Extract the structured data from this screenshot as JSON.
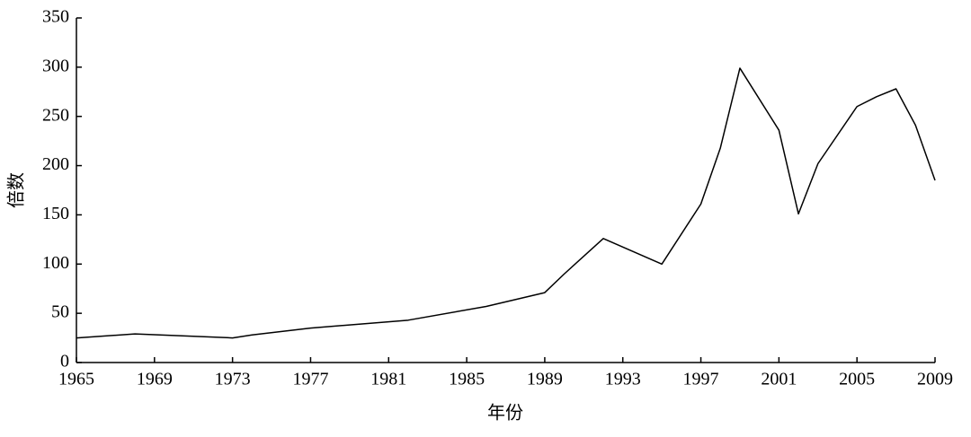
{
  "chart_data": {
    "type": "line",
    "x_label": "年份",
    "y_label": "倍数",
    "x": [
      1965,
      1968,
      1973,
      1974,
      1977,
      1982,
      1986,
      1989,
      1990,
      1992,
      1995,
      1997,
      1998,
      1999,
      2001,
      2002,
      2003,
      2005,
      2006,
      2007,
      2008,
      2009
    ],
    "series": [
      {
        "color": "#000000",
        "values": [
          25,
          29,
          25,
          28,
          35,
          43,
          57,
          71,
          90,
          126,
          100,
          161,
          218,
          299,
          236,
          151,
          202,
          260,
          270,
          278,
          241,
          185
        ]
      }
    ],
    "xlim": [
      1965,
      2009
    ],
    "xticks": [
      1965,
      1969,
      1973,
      1977,
      1981,
      1985,
      1989,
      1993,
      1997,
      2001,
      2005,
      2009
    ],
    "ylim": [
      0,
      350
    ],
    "yticks": [
      0,
      50,
      100,
      150,
      200,
      250,
      300,
      350
    ]
  }
}
